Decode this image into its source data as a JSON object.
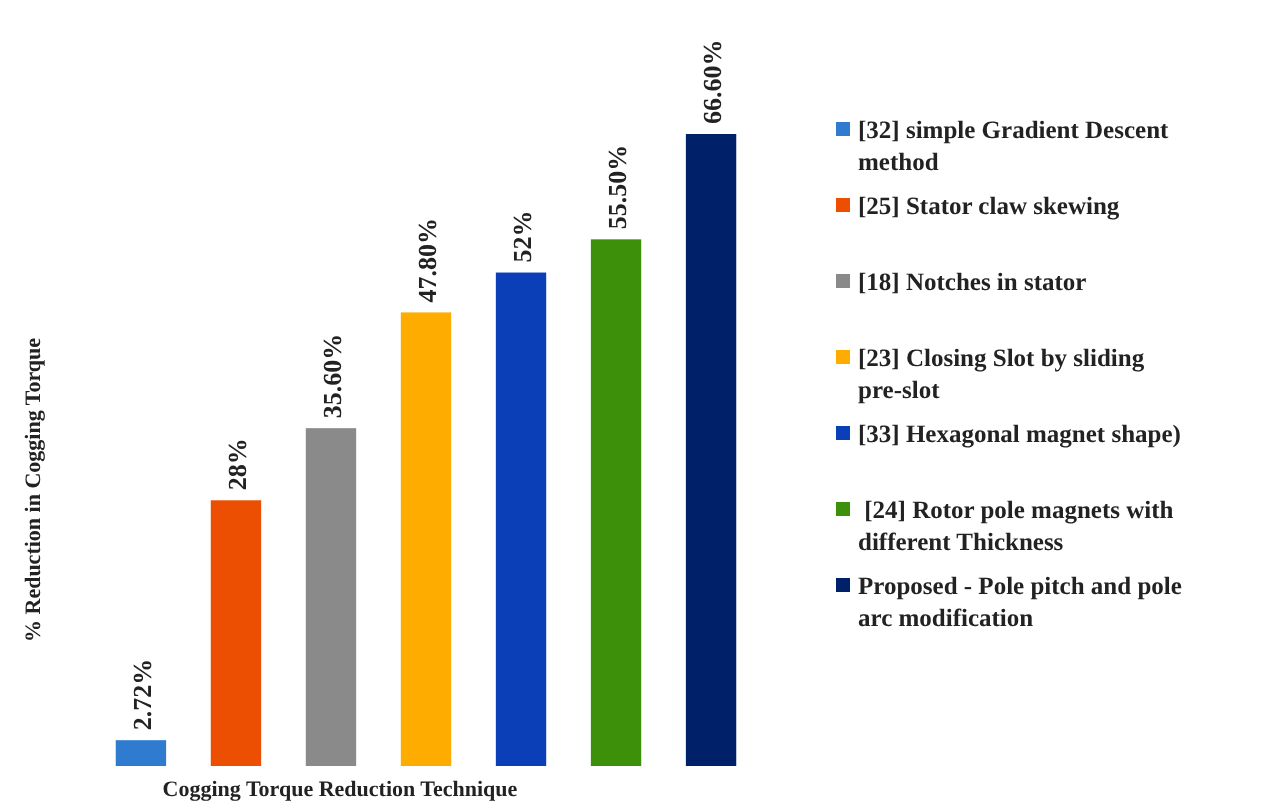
{
  "chart_data": {
    "type": "bar",
    "xlabel": "Cogging Torque Reduction Technique",
    "ylabel": "% Reduction in Cogging Torque",
    "categories": [
      null,
      null,
      null,
      null,
      null,
      null,
      null
    ],
    "stacked": true,
    "legend": "right",
    "series": [
      {
        "name": "[32] simple Gradient Descent method",
        "color": "#2e7bcf",
        "values": [
          2.72,
          null,
          null,
          null,
          null,
          null,
          null
        ],
        "value_labels": [
          "2.72%",
          null,
          null,
          null,
          null,
          null,
          null
        ]
      },
      {
        "name": "[25] Stator claw skewing",
        "color": "#ec4e02",
        "values": [
          null,
          28,
          null,
          null,
          null,
          null,
          null
        ],
        "value_labels": [
          null,
          "28%",
          null,
          null,
          null,
          null,
          null
        ]
      },
      {
        "name": "[18] Notches in stator",
        "color": "#8a8a8a",
        "values": [
          null,
          null,
          35.6,
          null,
          null,
          null,
          null
        ],
        "value_labels": [
          null,
          null,
          "35.60%",
          null,
          null,
          null,
          null
        ]
      },
      {
        "name": "[23] Closing Slot by sliding pre-slot",
        "color": "#ffac00",
        "values": [
          null,
          null,
          null,
          47.8,
          null,
          null,
          null
        ],
        "value_labels": [
          null,
          null,
          null,
          "47.80%",
          null,
          null,
          null
        ]
      },
      {
        "name": "[33] Hexagonal magnet shape)",
        "color": "#0a3fb8",
        "values": [
          null,
          null,
          null,
          null,
          52,
          null,
          null
        ],
        "value_labels": [
          null,
          null,
          null,
          null,
          "52%",
          null,
          null
        ]
      },
      {
        "name": " [24] Rotor pole magnets with different Thickness",
        "color": "#3d910a",
        "values": [
          null,
          null,
          null,
          null,
          null,
          55.5,
          null
        ],
        "value_labels": [
          null,
          null,
          null,
          null,
          null,
          "55.50%",
          null
        ]
      },
      {
        "name": "Proposed - Pole pitch and pole arc modification",
        "color": "#00216a",
        "values": [
          null,
          null,
          null,
          null,
          null,
          null,
          66.6
        ],
        "value_labels": [
          null,
          null,
          null,
          null,
          null,
          null,
          "66.60%"
        ]
      }
    ]
  }
}
